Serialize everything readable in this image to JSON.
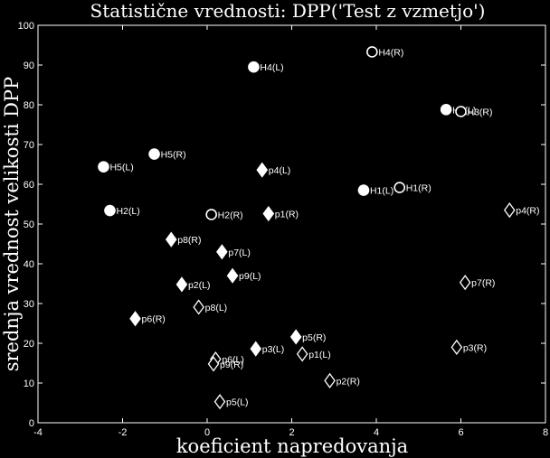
{
  "chart_data": {
    "type": "scatter",
    "title": "Statistične vrednosti: DPP('Test z vzmetjo')",
    "xlabel": "koeficient napredovanja",
    "ylabel": "srednja vrednost velikosti DPP",
    "xlim": [
      -4,
      8
    ],
    "ylim": [
      0,
      100
    ],
    "xticks": [
      -4,
      -2,
      0,
      2,
      4,
      6,
      8
    ],
    "yticks": [
      0,
      10,
      20,
      30,
      40,
      50,
      60,
      70,
      80,
      90,
      100
    ],
    "grid": false,
    "colors": {
      "background": "#000000",
      "foreground": "#ffffff"
    },
    "points": [
      {
        "label": "H4(L)",
        "x": 1.1,
        "y": 89.5,
        "marker": "circle",
        "filled": true
      },
      {
        "label": "H4(R)",
        "x": 3.9,
        "y": 93.3,
        "marker": "circle",
        "filled": false
      },
      {
        "label": "H3(L)",
        "x": 5.65,
        "y": 78.8,
        "marker": "circle",
        "filled": true
      },
      {
        "label": "H3(R)",
        "x": 6.0,
        "y": 78.3,
        "marker": "circle",
        "filled": false
      },
      {
        "label": "H5(L)",
        "x": -2.45,
        "y": 64.4,
        "marker": "circle",
        "filled": true
      },
      {
        "label": "H5(R)",
        "x": -1.25,
        "y": 67.6,
        "marker": "circle",
        "filled": true
      },
      {
        "label": "H1(L)",
        "x": 3.7,
        "y": 58.5,
        "marker": "circle",
        "filled": true
      },
      {
        "label": "H1(R)",
        "x": 4.55,
        "y": 59.2,
        "marker": "circle",
        "filled": false
      },
      {
        "label": "H2(L)",
        "x": -2.3,
        "y": 53.4,
        "marker": "circle",
        "filled": true
      },
      {
        "label": "H2(R)",
        "x": 0.1,
        "y": 52.4,
        "marker": "circle",
        "filled": false
      },
      {
        "label": "p4(L)",
        "x": 1.3,
        "y": 63.6,
        "marker": "diamond",
        "filled": true
      },
      {
        "label": "p1(R)",
        "x": 1.45,
        "y": 52.6,
        "marker": "diamond",
        "filled": true
      },
      {
        "label": "p4(R)",
        "x": 7.15,
        "y": 53.5,
        "marker": "diamond",
        "filled": false
      },
      {
        "label": "p8(R)",
        "x": -0.85,
        "y": 46.1,
        "marker": "diamond",
        "filled": true
      },
      {
        "label": "p7(L)",
        "x": 0.35,
        "y": 43.0,
        "marker": "diamond",
        "filled": true
      },
      {
        "label": "p9(L)",
        "x": 0.6,
        "y": 37.0,
        "marker": "diamond",
        "filled": true
      },
      {
        "label": "p2(L)",
        "x": -0.6,
        "y": 34.8,
        "marker": "diamond",
        "filled": true
      },
      {
        "label": "p7(R)",
        "x": 6.1,
        "y": 35.3,
        "marker": "diamond",
        "filled": false
      },
      {
        "label": "p8(L)",
        "x": -0.2,
        "y": 29.1,
        "marker": "diamond",
        "filled": false
      },
      {
        "label": "p6(R)",
        "x": -1.7,
        "y": 26.2,
        "marker": "diamond",
        "filled": true
      },
      {
        "label": "p5(R)",
        "x": 2.1,
        "y": 21.6,
        "marker": "diamond",
        "filled": true
      },
      {
        "label": "p3(L)",
        "x": 1.15,
        "y": 18.6,
        "marker": "diamond",
        "filled": true
      },
      {
        "label": "p1(L)",
        "x": 2.25,
        "y": 17.3,
        "marker": "diamond",
        "filled": false
      },
      {
        "label": "p3(R)",
        "x": 5.9,
        "y": 19.0,
        "marker": "diamond",
        "filled": false
      },
      {
        "label": "p6(L)",
        "x": 0.2,
        "y": 16.0,
        "marker": "diamond",
        "filled": false
      },
      {
        "label": "p9(R)",
        "x": 0.15,
        "y": 14.8,
        "marker": "diamond",
        "filled": false
      },
      {
        "label": "p2(R)",
        "x": 2.9,
        "y": 10.6,
        "marker": "diamond",
        "filled": false
      },
      {
        "label": "p5(L)",
        "x": 0.3,
        "y": 5.3,
        "marker": "diamond",
        "filled": false
      }
    ]
  }
}
